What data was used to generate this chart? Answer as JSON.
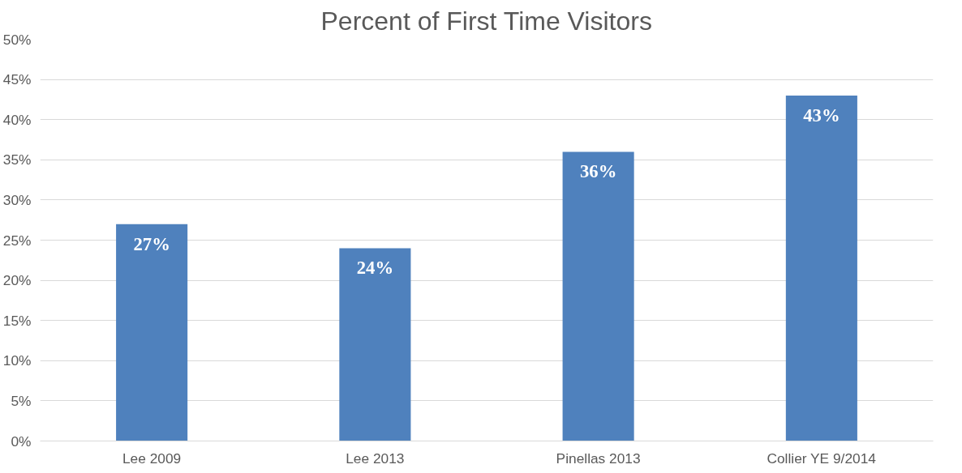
{
  "chart_data": {
    "type": "bar",
    "title": "Percent of First Time Visitors",
    "categories": [
      "Lee 2009",
      "Lee 2013",
      "Pinellas 2013",
      "Collier YE 9/2014"
    ],
    "values": [
      27,
      24,
      36,
      43
    ],
    "color": "#4f81bd",
    "value_labels": [
      "27%",
      "24%",
      "36%",
      "43%"
    ],
    "ylim": [
      0,
      50
    ],
    "yticks": [
      {
        "value": 0,
        "label": "0%"
      },
      {
        "value": 5,
        "label": "5%"
      },
      {
        "value": 10,
        "label": "10%"
      },
      {
        "value": 15,
        "label": "15%"
      },
      {
        "value": 20,
        "label": "20%"
      },
      {
        "value": 25,
        "label": "25%"
      },
      {
        "value": 30,
        "label": "30%"
      },
      {
        "value": 35,
        "label": "35%"
      },
      {
        "value": 40,
        "label": "40%"
      },
      {
        "value": 45,
        "label": "45%"
      },
      {
        "value": 50,
        "label": "50%"
      }
    ],
    "grid": "y"
  }
}
